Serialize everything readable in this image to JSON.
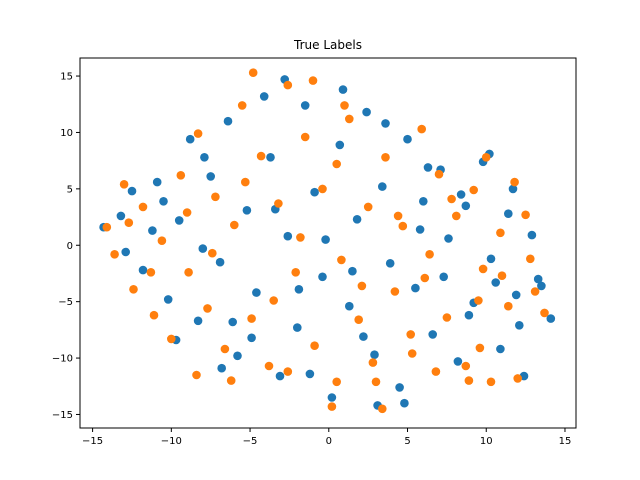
{
  "chart_data": {
    "type": "scatter",
    "title": "True Labels",
    "xlabel": "",
    "ylabel": "",
    "xlim": [
      -15.8,
      15.7
    ],
    "ylim": [
      -16.2,
      16.6
    ],
    "xticks": [
      -15,
      -10,
      -5,
      0,
      5,
      10,
      15
    ],
    "yticks": [
      -15,
      -10,
      -5,
      0,
      5,
      10,
      15
    ],
    "grid": false,
    "legend": "none",
    "series": [
      {
        "color": "#1f77b4",
        "points": [
          [
            -13.2,
            2.6
          ],
          [
            -12.5,
            4.8
          ],
          [
            -11.8,
            -2.2
          ],
          [
            -10.9,
            5.6
          ],
          [
            -10.2,
            -4.8
          ],
          [
            -9.5,
            2.2
          ],
          [
            -8.8,
            9.4
          ],
          [
            -8.3,
            -6.7
          ],
          [
            -7.5,
            6.1
          ],
          [
            -6.9,
            -1.5
          ],
          [
            -6.4,
            11.0
          ],
          [
            -5.8,
            -9.8
          ],
          [
            -5.2,
            3.1
          ],
          [
            -4.6,
            -4.2
          ],
          [
            -4.1,
            13.2
          ],
          [
            -3.7,
            7.8
          ],
          [
            -3.1,
            -11.6
          ],
          [
            -2.6,
            0.8
          ],
          [
            -2.0,
            -7.3
          ],
          [
            -1.5,
            12.4
          ],
          [
            -0.9,
            4.7
          ],
          [
            -0.4,
            -2.8
          ],
          [
            0.2,
            -13.5
          ],
          [
            0.7,
            8.9
          ],
          [
            1.3,
            -5.4
          ],
          [
            1.8,
            2.3
          ],
          [
            2.4,
            11.8
          ],
          [
            2.9,
            -9.7
          ],
          [
            3.4,
            5.2
          ],
          [
            3.9,
            -1.6
          ],
          [
            4.5,
            -12.6
          ],
          [
            5.0,
            9.4
          ],
          [
            5.5,
            -3.8
          ],
          [
            6.0,
            3.9
          ],
          [
            6.6,
            -7.9
          ],
          [
            7.1,
            6.7
          ],
          [
            7.6,
            0.6
          ],
          [
            8.2,
            -10.3
          ],
          [
            8.7,
            3.5
          ],
          [
            9.2,
            -5.1
          ],
          [
            9.8,
            7.4
          ],
          [
            10.3,
            -1.2
          ],
          [
            10.9,
            -9.2
          ],
          [
            11.4,
            2.8
          ],
          [
            11.9,
            -4.4
          ],
          [
            12.4,
            -11.6
          ],
          [
            12.9,
            0.9
          ],
          [
            13.5,
            -3.6
          ],
          [
            14.1,
            -6.5
          ],
          [
            -14.3,
            1.6
          ],
          [
            -12.9,
            -0.6
          ],
          [
            -11.2,
            1.3
          ],
          [
            -9.7,
            -8.4
          ],
          [
            -8.0,
            -0.3
          ],
          [
            -6.1,
            -6.8
          ],
          [
            -4.9,
            -8.2
          ],
          [
            -3.4,
            3.2
          ],
          [
            -1.9,
            -3.9
          ],
          [
            -0.2,
            0.5
          ],
          [
            1.5,
            -2.3
          ],
          [
            3.1,
            -14.2
          ],
          [
            4.8,
            -14.0
          ],
          [
            5.8,
            1.4
          ],
          [
            7.3,
            -2.8
          ],
          [
            8.9,
            -6.2
          ],
          [
            10.6,
            -3.3
          ],
          [
            12.1,
            -7.1
          ],
          [
            13.3,
            -3.0
          ],
          [
            -7.9,
            7.8
          ],
          [
            -2.8,
            14.7
          ],
          [
            0.9,
            13.8
          ],
          [
            3.6,
            10.8
          ],
          [
            6.3,
            6.9
          ],
          [
            8.4,
            4.5
          ],
          [
            10.2,
            8.1
          ],
          [
            11.7,
            5.0
          ],
          [
            -10.5,
            3.9
          ],
          [
            -6.8,
            -10.9
          ],
          [
            -1.2,
            -11.4
          ],
          [
            2.2,
            -8.1
          ]
        ]
      },
      {
        "color": "#ff7f0e",
        "points": [
          [
            -14.1,
            1.6
          ],
          [
            -13.6,
            -0.8
          ],
          [
            -13.0,
            5.4
          ],
          [
            -12.4,
            -3.9
          ],
          [
            -11.8,
            3.4
          ],
          [
            -11.1,
            -6.2
          ],
          [
            -10.6,
            0.4
          ],
          [
            -10.0,
            -8.3
          ],
          [
            -9.4,
            6.2
          ],
          [
            -8.9,
            -2.4
          ],
          [
            -8.3,
            9.9
          ],
          [
            -7.7,
            -5.6
          ],
          [
            -7.2,
            4.3
          ],
          [
            -6.6,
            -9.2
          ],
          [
            -6.0,
            1.8
          ],
          [
            -5.5,
            12.4
          ],
          [
            -4.9,
            -6.5
          ],
          [
            -4.3,
            7.9
          ],
          [
            -3.8,
            -10.7
          ],
          [
            -3.2,
            3.7
          ],
          [
            -2.6,
            14.2
          ],
          [
            -2.1,
            -2.4
          ],
          [
            -1.5,
            9.6
          ],
          [
            -0.9,
            -8.9
          ],
          [
            -0.4,
            5.0
          ],
          [
            0.2,
            -14.3
          ],
          [
            0.8,
            -1.3
          ],
          [
            1.3,
            11.2
          ],
          [
            1.9,
            -6.6
          ],
          [
            2.5,
            3.4
          ],
          [
            3.0,
            -12.1
          ],
          [
            3.6,
            7.8
          ],
          [
            4.2,
            -4.1
          ],
          [
            4.7,
            1.7
          ],
          [
            5.3,
            -9.6
          ],
          [
            5.9,
            10.3
          ],
          [
            6.4,
            -0.8
          ],
          [
            7.0,
            6.3
          ],
          [
            7.5,
            -6.4
          ],
          [
            8.1,
            2.6
          ],
          [
            8.7,
            -10.7
          ],
          [
            9.2,
            4.9
          ],
          [
            9.8,
            -2.1
          ],
          [
            10.3,
            -12.1
          ],
          [
            10.9,
            1.1
          ],
          [
            11.4,
            -5.4
          ],
          [
            12.0,
            -11.8
          ],
          [
            12.5,
            2.7
          ],
          [
            13.1,
            -4.1
          ],
          [
            13.7,
            -6.0
          ],
          [
            -12.7,
            2.0
          ],
          [
            -11.3,
            -2.4
          ],
          [
            -9.0,
            2.9
          ],
          [
            -7.4,
            -0.7
          ],
          [
            -5.3,
            5.6
          ],
          [
            -3.5,
            -4.9
          ],
          [
            -1.8,
            0.7
          ],
          [
            0.5,
            7.2
          ],
          [
            2.1,
            -3.6
          ],
          [
            4.4,
            2.6
          ],
          [
            6.1,
            -2.9
          ],
          [
            7.8,
            4.1
          ],
          [
            9.5,
            -4.9
          ],
          [
            11.0,
            -2.7
          ],
          [
            12.8,
            -1.2
          ],
          [
            -4.8,
            15.3
          ],
          [
            -1.0,
            14.6
          ],
          [
            1.0,
            12.4
          ],
          [
            3.4,
            -14.5
          ],
          [
            8.9,
            -12.0
          ],
          [
            10.0,
            7.8
          ],
          [
            11.8,
            5.6
          ],
          [
            -8.4,
            -11.5
          ],
          [
            -6.2,
            -12.0
          ],
          [
            -2.6,
            -11.2
          ],
          [
            0.5,
            -12.1
          ],
          [
            2.8,
            -10.4
          ],
          [
            5.2,
            -7.9
          ],
          [
            6.8,
            -11.2
          ],
          [
            9.6,
            -9.1
          ]
        ]
      }
    ]
  }
}
